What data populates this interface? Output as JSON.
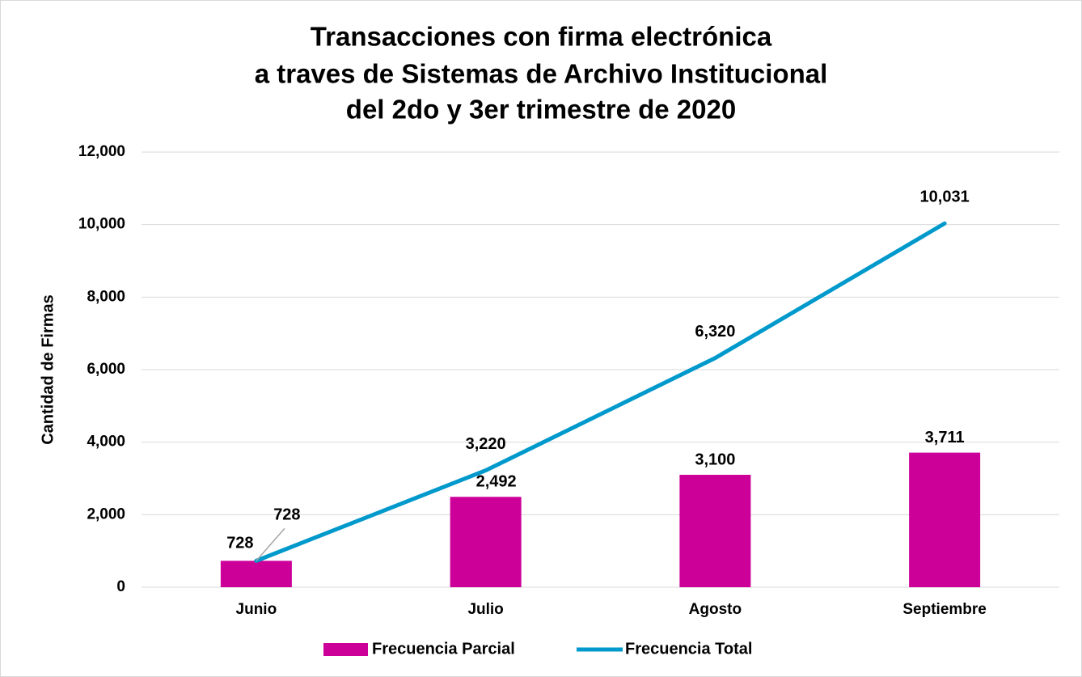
{
  "chart_data": {
    "type": "bar-line",
    "title": [
      "Transacciones con firma electrónica",
      "a traves de Sistemas de Archivo Institucional",
      "del 2do y 3er trimestre de 2020"
    ],
    "y_label": "Cantidad de Firmas",
    "categories": [
      "Junio",
      "Julio",
      "Agosto",
      "Septiembre"
    ],
    "series": [
      {
        "name": "Frecuencia Parcial",
        "type": "bar",
        "color": "#cc0099",
        "values": [
          728,
          2492,
          3100,
          3711
        ],
        "value_labels": [
          "728",
          "2,492",
          "3,100",
          "3,711"
        ]
      },
      {
        "name": "Frecuencia Total",
        "type": "line",
        "color": "#0099cc",
        "values": [
          728,
          3220,
          6320,
          10031
        ],
        "value_labels": [
          "728",
          "3,220",
          "6,320",
          "10,031"
        ]
      }
    ],
    "ylim": [
      0,
      12000
    ],
    "yticks": [
      0,
      {
        "value": 2000,
        "label": "2,000"
      },
      {
        "value": 4000,
        "label": "4,000"
      },
      {
        "value": 6000,
        "label": "6,000"
      },
      {
        "value": 8000,
        "label": "8,000"
      },
      {
        "value": 10000,
        "label": "10,000"
      },
      {
        "value": 12000,
        "label": "12,000"
      }
    ],
    "grid": true,
    "legend": "bottom"
  }
}
